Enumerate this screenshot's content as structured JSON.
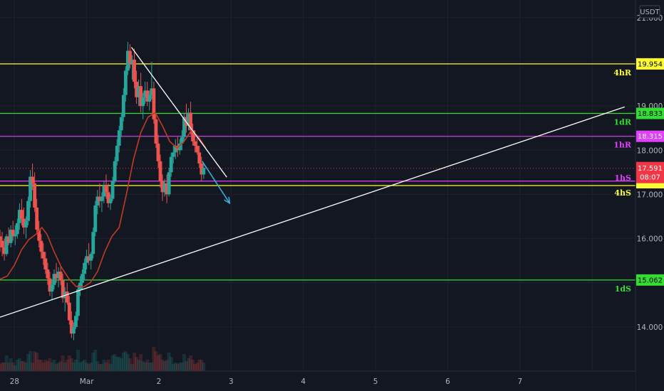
{
  "currency": "USDT",
  "colors": {
    "background": "#131722",
    "grid": "#1e2230",
    "candle_up": "#26a69a",
    "candle_down": "#ef5350",
    "ma": "#c23b22",
    "trendline": "#ffffff",
    "arrow": "#38b6e0",
    "yellow": "#ffff33",
    "green": "#33dd33",
    "magenta": "#e040fb"
  },
  "levels": [
    {
      "id": "4hR",
      "label": "4hR",
      "price": 19.954,
      "box": "19.954",
      "color": "#ffff33",
      "text_color": "#000000"
    },
    {
      "id": "1dR",
      "label": "1dR",
      "price": 18.833,
      "box": "18.833",
      "color": "#33dd33",
      "text_color": "#000000"
    },
    {
      "id": "1hR",
      "label": "1hR",
      "price": 18.315,
      "box": "18.315",
      "color": "#e040fb",
      "text_color": "#ffffff"
    },
    {
      "id": "1hS",
      "label": "1hS",
      "price": 17.3,
      "box": "",
      "color": "#e040fb",
      "text_color": "#ffffff"
    },
    {
      "id": "4hS",
      "label": "4hS",
      "price": 17.2,
      "box": "",
      "color": "#ffff33",
      "text_color": "#000000"
    },
    {
      "id": "1dS",
      "label": "1dS",
      "price": 15.062,
      "box": "15.062",
      "color": "#33dd33",
      "text_color": "#000000"
    }
  ],
  "last_price": {
    "value": 17.591,
    "label": "17.591",
    "countdown": "08:07",
    "color": "#f23645"
  },
  "chart_data": {
    "type": "candlestick",
    "ylim": [
      13.0,
      21.4
    ],
    "xlim": [
      -1.2,
      7.6
    ],
    "y_ticks": [
      14.0,
      15.0,
      16.0,
      17.0,
      18.0,
      19.0,
      20.0,
      21.0
    ],
    "y_tick_labels": [
      "14.000",
      "15.000",
      "16.000",
      "17.000",
      "18.000",
      "19.000",
      "20.000",
      "21.000"
    ],
    "x_ticks": [
      -1,
      0,
      1,
      2,
      3,
      4,
      5,
      6,
      7
    ],
    "x_tick_labels": [
      "28",
      "Mar",
      "2",
      "3",
      "4",
      "5",
      "6",
      "7"
    ],
    "x_tick_positions": [
      -1.0,
      0.0,
      1.0,
      2.0,
      3.0,
      4.0,
      5.0,
      6.0,
      7.0
    ],
    "ohlc": [
      [
        -1.2,
        16.05,
        16.2,
        15.7,
        15.95
      ],
      [
        -1.17,
        15.95,
        16.15,
        15.6,
        15.8
      ],
      [
        -1.14,
        15.8,
        16.0,
        15.5,
        15.65
      ],
      [
        -1.11,
        15.65,
        16.1,
        15.6,
        16.05
      ],
      [
        -1.08,
        16.05,
        16.25,
        15.85,
        15.9
      ],
      [
        -1.05,
        15.9,
        16.3,
        15.8,
        16.2
      ],
      [
        -1.02,
        16.2,
        16.4,
        15.95,
        16.05
      ],
      [
        -0.99,
        16.05,
        16.3,
        15.85,
        16.1
      ],
      [
        -0.96,
        16.1,
        16.45,
        16.0,
        16.35
      ],
      [
        -0.93,
        16.35,
        16.8,
        16.2,
        16.65
      ],
      [
        -0.9,
        16.65,
        16.9,
        16.3,
        16.45
      ],
      [
        -0.87,
        16.45,
        16.7,
        16.1,
        16.25
      ],
      [
        -0.84,
        16.25,
        16.5,
        16.0,
        16.4
      ],
      [
        -0.81,
        16.4,
        16.95,
        16.3,
        16.85
      ],
      [
        -0.78,
        16.85,
        17.55,
        16.7,
        17.4
      ],
      [
        -0.75,
        17.4,
        17.7,
        17.1,
        17.25
      ],
      [
        -0.72,
        17.25,
        17.5,
        16.6,
        16.7
      ],
      [
        -0.69,
        16.7,
        16.9,
        16.1,
        16.2
      ],
      [
        -0.66,
        16.2,
        16.4,
        15.8,
        15.95
      ],
      [
        -0.63,
        15.95,
        16.1,
        15.55,
        15.7
      ],
      [
        -0.6,
        15.7,
        15.9,
        15.4,
        15.55
      ],
      [
        -0.57,
        15.55,
        15.7,
        15.2,
        15.3
      ],
      [
        -0.54,
        15.3,
        15.45,
        14.95,
        15.1
      ],
      [
        -0.51,
        15.1,
        15.25,
        14.7,
        14.8
      ],
      [
        -0.48,
        14.8,
        15.05,
        14.6,
        14.95
      ],
      [
        -0.45,
        14.95,
        15.3,
        14.85,
        15.2
      ],
      [
        -0.42,
        15.2,
        15.45,
        15.0,
        15.1
      ],
      [
        -0.39,
        15.1,
        15.35,
        14.9,
        15.25
      ],
      [
        -0.36,
        15.25,
        15.4,
        14.95,
        15.05
      ],
      [
        -0.33,
        15.05,
        15.2,
        14.55,
        14.65
      ],
      [
        -0.3,
        14.65,
        14.9,
        14.35,
        14.8
      ],
      [
        -0.27,
        14.8,
        15.0,
        14.5,
        14.55
      ],
      [
        -0.24,
        14.55,
        14.7,
        14.05,
        14.15
      ],
      [
        -0.21,
        14.15,
        14.35,
        13.75,
        13.85
      ],
      [
        -0.18,
        13.85,
        14.1,
        13.7,
        14.0
      ],
      [
        -0.15,
        14.0,
        14.35,
        13.95,
        14.25
      ],
      [
        -0.12,
        14.25,
        14.95,
        14.15,
        14.85
      ],
      [
        -0.09,
        14.85,
        15.15,
        14.7,
        15.0
      ],
      [
        -0.06,
        15.0,
        15.3,
        14.85,
        15.2
      ],
      [
        -0.03,
        15.2,
        15.55,
        15.05,
        15.45
      ],
      [
        0.0,
        15.45,
        15.75,
        15.3,
        15.6
      ],
      [
        0.03,
        15.6,
        15.9,
        15.4,
        15.5
      ],
      [
        0.06,
        15.5,
        15.7,
        15.3,
        15.65
      ],
      [
        0.09,
        15.65,
        16.25,
        15.55,
        16.15
      ],
      [
        0.12,
        16.15,
        16.85,
        16.05,
        16.75
      ],
      [
        0.15,
        16.75,
        17.1,
        16.55,
        16.95
      ],
      [
        0.18,
        16.95,
        17.25,
        16.7,
        16.85
      ],
      [
        0.21,
        16.85,
        17.05,
        16.6,
        16.95
      ],
      [
        0.24,
        16.95,
        17.3,
        16.8,
        17.2
      ],
      [
        0.27,
        17.2,
        17.45,
        16.9,
        17.05
      ],
      [
        0.3,
        17.05,
        17.25,
        16.7,
        16.8
      ],
      [
        0.33,
        16.8,
        17.0,
        16.65,
        16.9
      ],
      [
        0.36,
        16.9,
        17.4,
        16.85,
        17.3
      ],
      [
        0.39,
        17.3,
        17.85,
        17.25,
        17.75
      ],
      [
        0.42,
        17.75,
        18.25,
        17.65,
        18.1
      ],
      [
        0.45,
        18.1,
        18.55,
        17.95,
        18.45
      ],
      [
        0.48,
        18.45,
        18.85,
        18.3,
        18.75
      ],
      [
        0.51,
        18.75,
        19.4,
        18.65,
        19.25
      ],
      [
        0.54,
        19.25,
        19.9,
        19.1,
        19.8
      ],
      [
        0.57,
        19.8,
        20.45,
        19.7,
        20.25
      ],
      [
        0.6,
        20.25,
        20.4,
        19.85,
        19.95
      ],
      [
        0.63,
        19.95,
        20.15,
        19.6,
        20.05
      ],
      [
        0.66,
        20.05,
        20.3,
        19.4,
        19.55
      ],
      [
        0.69,
        19.55,
        19.8,
        19.05,
        19.2
      ],
      [
        0.72,
        19.2,
        19.6,
        19.0,
        19.45
      ],
      [
        0.75,
        19.45,
        19.75,
        18.85,
        19.0
      ],
      [
        0.78,
        19.0,
        19.3,
        18.7,
        19.2
      ],
      [
        0.81,
        19.2,
        19.55,
        19.05,
        19.35
      ],
      [
        0.84,
        19.35,
        19.55,
        19.0,
        19.1
      ],
      [
        0.87,
        19.1,
        19.35,
        18.9,
        19.25
      ],
      [
        0.9,
        19.25,
        20.0,
        19.15,
        19.4
      ],
      [
        0.93,
        19.4,
        19.55,
        18.6,
        18.7
      ],
      [
        0.96,
        18.7,
        18.85,
        18.05,
        18.15
      ],
      [
        0.99,
        18.15,
        18.35,
        17.6,
        17.75
      ],
      [
        1.02,
        17.75,
        17.9,
        17.15,
        17.3
      ],
      [
        1.05,
        17.3,
        17.45,
        16.85,
        17.05
      ],
      [
        1.08,
        17.05,
        17.35,
        16.95,
        17.25
      ],
      [
        1.11,
        17.25,
        17.45,
        16.8,
        17.0
      ],
      [
        1.14,
        17.0,
        17.6,
        16.95,
        17.5
      ],
      [
        1.17,
        17.5,
        17.95,
        17.4,
        17.85
      ],
      [
        1.2,
        17.85,
        18.1,
        17.7,
        17.95
      ],
      [
        1.23,
        17.95,
        18.25,
        17.8,
        18.1
      ],
      [
        1.26,
        18.1,
        18.3,
        17.85,
        18.0
      ],
      [
        1.29,
        18.0,
        18.25,
        17.9,
        18.15
      ],
      [
        1.32,
        18.15,
        18.45,
        18.0,
        18.3
      ],
      [
        1.35,
        18.3,
        18.85,
        18.2,
        18.75
      ],
      [
        1.38,
        18.75,
        19.05,
        18.4,
        18.55
      ],
      [
        1.41,
        18.55,
        18.95,
        18.45,
        18.85
      ],
      [
        1.44,
        18.85,
        19.1,
        18.35,
        18.45
      ],
      [
        1.47,
        18.45,
        18.6,
        18.1,
        18.2
      ],
      [
        1.5,
        18.2,
        18.45,
        17.95,
        18.1
      ],
      [
        1.53,
        18.1,
        18.35,
        17.9,
        17.95
      ],
      [
        1.56,
        17.95,
        18.1,
        17.6,
        17.7
      ],
      [
        1.59,
        17.7,
        17.85,
        17.3,
        17.45
      ],
      [
        1.62,
        17.45,
        17.7,
        17.35,
        17.6
      ]
    ],
    "ma": [
      [
        -1.2,
        15.08
      ],
      [
        -1.1,
        15.15
      ],
      [
        -1.0,
        15.4
      ],
      [
        -0.9,
        15.75
      ],
      [
        -0.8,
        15.98
      ],
      [
        -0.7,
        16.1
      ],
      [
        -0.62,
        16.25
      ],
      [
        -0.55,
        16.1
      ],
      [
        -0.45,
        15.7
      ],
      [
        -0.35,
        15.35
      ],
      [
        -0.25,
        15.1
      ],
      [
        -0.15,
        14.92
      ],
      [
        -0.05,
        14.9
      ],
      [
        0.05,
        15.0
      ],
      [
        0.15,
        15.25
      ],
      [
        0.25,
        15.7
      ],
      [
        0.35,
        16.05
      ],
      [
        0.45,
        16.25
      ],
      [
        0.55,
        17.0
      ],
      [
        0.65,
        17.8
      ],
      [
        0.75,
        18.4
      ],
      [
        0.85,
        18.75
      ],
      [
        0.95,
        18.85
      ],
      [
        1.05,
        18.55
      ],
      [
        1.15,
        18.2
      ],
      [
        1.25,
        18.05
      ],
      [
        1.35,
        18.2
      ],
      [
        1.45,
        18.45
      ],
      [
        1.55,
        18.3
      ],
      [
        1.65,
        18.05
      ]
    ],
    "trendline_support": [
      [
        -1.2,
        14.22
      ],
      [
        7.45,
        18.98
      ]
    ],
    "trendline_resistance": [
      [
        0.62,
        20.33
      ],
      [
        1.94,
        17.39
      ]
    ],
    "projection_arrow": [
      [
        1.6,
        17.75
      ],
      [
        1.98,
        16.8
      ]
    ]
  }
}
